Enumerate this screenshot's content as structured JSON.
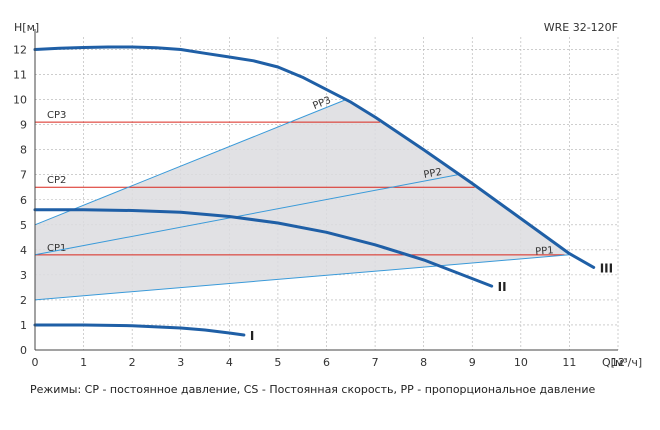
{
  "chart_data": {
    "type": "line",
    "model": "WRE 32-120F",
    "ylabel": "H[м]",
    "xlabel": "Q[м³/ч]",
    "xlim": [
      0,
      12
    ],
    "ylim": [
      0,
      12.5
    ],
    "xticks": [
      0,
      1,
      2,
      3,
      4,
      5,
      6,
      7,
      8,
      9,
      10,
      11,
      12
    ],
    "yticks": [
      0,
      1,
      2,
      3,
      4,
      5,
      6,
      7,
      8,
      9,
      10,
      11,
      12
    ],
    "grid": true,
    "colors": {
      "pump_curve": "#1f5fa6",
      "constant_pressure": "#d9261c",
      "proportional_pressure": "#3a9ad9",
      "region_fill": "#dcdcdf",
      "grid": "#b0b0b0"
    },
    "series": [
      {
        "name": "I",
        "x": [
          0,
          1,
          2,
          3,
          3.5,
          4,
          4.3
        ],
        "y": [
          1.0,
          1.0,
          0.97,
          0.88,
          0.8,
          0.68,
          0.6
        ]
      },
      {
        "name": "II",
        "x": [
          0,
          1,
          2,
          3,
          4,
          5,
          6,
          7,
          8,
          9,
          9.4
        ],
        "y": [
          5.6,
          5.6,
          5.57,
          5.5,
          5.33,
          5.07,
          4.7,
          4.2,
          3.6,
          2.85,
          2.55
        ]
      },
      {
        "name": "III",
        "x": [
          0,
          0.5,
          1,
          1.5,
          2,
          2.5,
          3,
          3.5,
          4,
          4.5,
          5,
          5.5,
          6,
          6.5,
          7,
          8,
          9,
          10,
          11,
          11.5
        ],
        "y": [
          12.0,
          12.05,
          12.08,
          12.1,
          12.1,
          12.07,
          12.0,
          11.85,
          11.7,
          11.55,
          11.3,
          10.9,
          10.4,
          9.9,
          9.3,
          8.0,
          6.65,
          5.25,
          3.85,
          3.3
        ]
      }
    ],
    "constant_pressure": [
      {
        "name": "CP1",
        "y": 3.8,
        "x_start": 0,
        "x_end": 10.9
      },
      {
        "name": "CP2",
        "y": 6.5,
        "x_start": 0,
        "x_end": 9.05
      },
      {
        "name": "CP3",
        "y": 9.1,
        "x_start": 0,
        "x_end": 7.1
      }
    ],
    "proportional_pressure": [
      {
        "name": "PP1",
        "x": [
          0,
          11.0
        ],
        "y": [
          2.0,
          3.8
        ]
      },
      {
        "name": "PP2",
        "x": [
          0,
          8.7
        ],
        "y": [
          3.8,
          7.0
        ]
      },
      {
        "name": "PP3",
        "x": [
          0,
          6.4
        ],
        "y": [
          5.0,
          10.0
        ]
      }
    ],
    "operating_region": {
      "x": [
        0,
        6.4,
        7,
        8,
        9,
        10,
        11.0,
        0
      ],
      "y": [
        5.0,
        10.0,
        9.3,
        8.0,
        6.65,
        5.25,
        3.8,
        2.0
      ]
    },
    "footnote": "Режимы: CP - постоянное давление, CS - Постоянная скорость, PP - пропорциональное давление"
  }
}
